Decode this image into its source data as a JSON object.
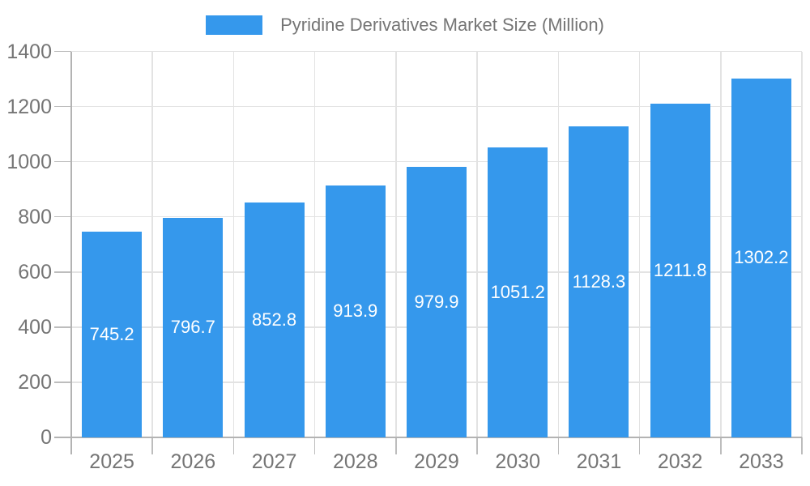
{
  "legend": {
    "label": "Pyridine Derivatives Market Size (Million)"
  },
  "chart_data": {
    "type": "bar",
    "title": "Pyridine Derivatives Market Size (Million)",
    "series_name": "Pyridine Derivatives Market Size (Million)",
    "categories": [
      "2025",
      "2026",
      "2027",
      "2028",
      "2029",
      "2030",
      "2031",
      "2032",
      "2033"
    ],
    "values": [
      745.2,
      796.7,
      852.8,
      913.9,
      979.9,
      1051.2,
      1128.3,
      1211.8,
      1302.2
    ],
    "xlabel": "",
    "ylabel": "",
    "ylim": [
      0,
      1400
    ],
    "yticks": [
      0,
      200,
      400,
      600,
      800,
      1000,
      1200,
      1400
    ],
    "grid": true,
    "legend_position": "top",
    "bar_color": "#3598ec",
    "value_label_color": "#ffffff",
    "axis_text_color": "#757575",
    "gridline_color": "#e3e3e3",
    "axis_line_color": "#b3b3b3"
  }
}
